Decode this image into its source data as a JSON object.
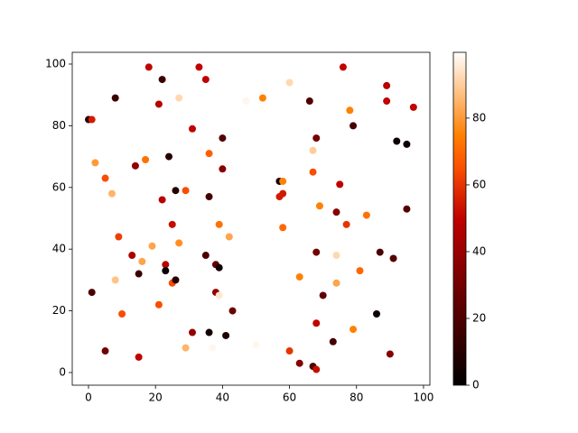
{
  "chart_data": {
    "type": "scatter",
    "colormap": "gist_heat",
    "x": [
      0,
      1,
      2,
      5,
      7,
      8,
      9,
      8,
      1,
      10,
      5,
      13,
      14,
      17,
      16,
      15,
      15,
      18,
      22,
      21,
      19,
      21,
      22,
      24,
      23,
      23,
      25,
      26,
      27,
      27,
      25,
      26,
      29,
      29,
      31,
      31,
      33,
      35,
      36,
      36,
      35,
      36,
      37,
      38,
      38,
      39,
      39,
      39,
      40,
      40,
      41,
      42,
      43,
      47,
      52,
      50,
      60,
      57,
      58,
      57,
      58,
      58,
      60,
      63,
      63,
      66,
      67,
      67,
      68,
      68,
      68,
      67,
      68,
      69,
      70,
      74,
      75,
      77,
      76,
      74,
      74,
      73,
      78,
      79,
      79,
      81,
      83,
      86,
      87,
      89,
      89,
      91,
      90,
      92,
      95,
      95,
      97
    ],
    "values": [
      82,
      82,
      68,
      63,
      58,
      89,
      44,
      30,
      26,
      19,
      7,
      38,
      67,
      69,
      36,
      32,
      5,
      99,
      95,
      87,
      41,
      22,
      56,
      70,
      35,
      33,
      48,
      59,
      89,
      42,
      29,
      30,
      59,
      8,
      79,
      13,
      99,
      95,
      71,
      57,
      38,
      13,
      8,
      26,
      35,
      48,
      34,
      25,
      76,
      66,
      12,
      44,
      20,
      88,
      89,
      9,
      94,
      62,
      62,
      57,
      58,
      47,
      7,
      3,
      31,
      88,
      72,
      65,
      76,
      39,
      16,
      2,
      1,
      54,
      25,
      52,
      61,
      48,
      99,
      38,
      29,
      10,
      85,
      80,
      14,
      33,
      51,
      19,
      39,
      93,
      88,
      37,
      6,
      75,
      74,
      53,
      86
    ],
    "c": [
      10,
      55,
      80,
      65,
      85,
      15,
      62,
      88,
      20,
      65,
      30,
      45,
      38,
      72,
      82,
      15,
      50,
      50,
      15,
      48,
      82,
      65,
      48,
      10,
      48,
      2,
      52,
      10,
      92,
      78,
      65,
      10,
      65,
      85,
      50,
      38,
      50,
      50,
      68,
      18,
      20,
      5,
      98,
      38,
      25,
      72,
      5,
      95,
      22,
      35,
      8,
      82,
      28,
      98,
      75,
      98,
      92,
      5,
      75,
      55,
      55,
      70,
      60,
      35,
      75,
      20,
      90,
      65,
      30,
      30,
      50,
      20,
      52,
      75,
      25,
      35,
      50,
      60,
      50,
      92,
      82,
      18,
      75,
      18,
      75,
      70,
      72,
      3,
      20,
      48,
      50,
      22,
      35,
      3,
      3,
      22,
      50
    ],
    "xlim": [
      -4.85,
      101.9
    ],
    "ylim": [
      -4.1,
      103.8
    ],
    "xticks": [
      0,
      20,
      40,
      60,
      80,
      100
    ],
    "yticks": [
      0,
      20,
      40,
      60,
      80,
      100
    ],
    "clim": [
      0,
      99.7
    ],
    "cticks": [
      0,
      20,
      40,
      60,
      80
    ]
  }
}
